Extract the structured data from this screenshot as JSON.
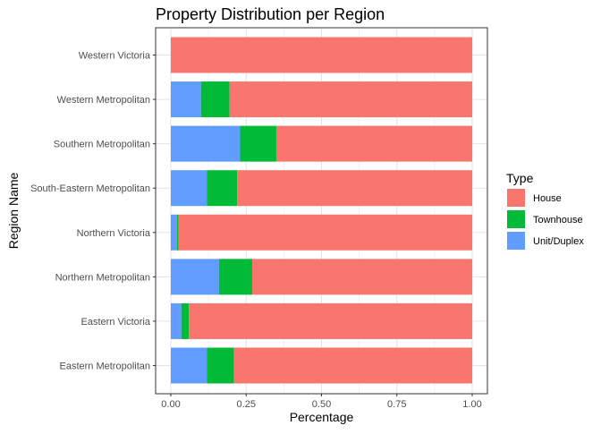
{
  "chart_data": {
    "type": "bar",
    "orientation": "horizontal",
    "stacked": true,
    "title": "Property Distribution per Region",
    "xlabel": "Percentage",
    "ylabel": "Region Name",
    "xlim": [
      0,
      1
    ],
    "xticks": [
      "0.00",
      "0.25",
      "0.50",
      "0.75",
      "1.00"
    ],
    "xtick_values": [
      0,
      0.25,
      0.5,
      0.75,
      1.0
    ],
    "grid": true,
    "legend_position": "right",
    "legend_title": "Type",
    "categories": [
      "Western Victoria",
      "Western Metropolitan",
      "Southern Metropolitan",
      "South-Eastern Metropolitan",
      "Northern Victoria",
      "Northern Metropolitan",
      "Eastern Victoria",
      "Eastern Metropolitan"
    ],
    "series": [
      {
        "name": "Unit/Duplex",
        "color": "#619CFF",
        "values": [
          0.0,
          0.1,
          0.23,
          0.12,
          0.02,
          0.16,
          0.035,
          0.12
        ]
      },
      {
        "name": "Townhouse",
        "color": "#00BA38",
        "values": [
          0.0,
          0.095,
          0.12,
          0.1,
          0.005,
          0.11,
          0.025,
          0.09
        ]
      },
      {
        "name": "House",
        "color": "#F8766D",
        "values": [
          1.0,
          0.805,
          0.65,
          0.78,
          0.975,
          0.73,
          0.94,
          0.79
        ]
      }
    ],
    "legend_order": [
      "House",
      "Townhouse",
      "Unit/Duplex"
    ]
  }
}
